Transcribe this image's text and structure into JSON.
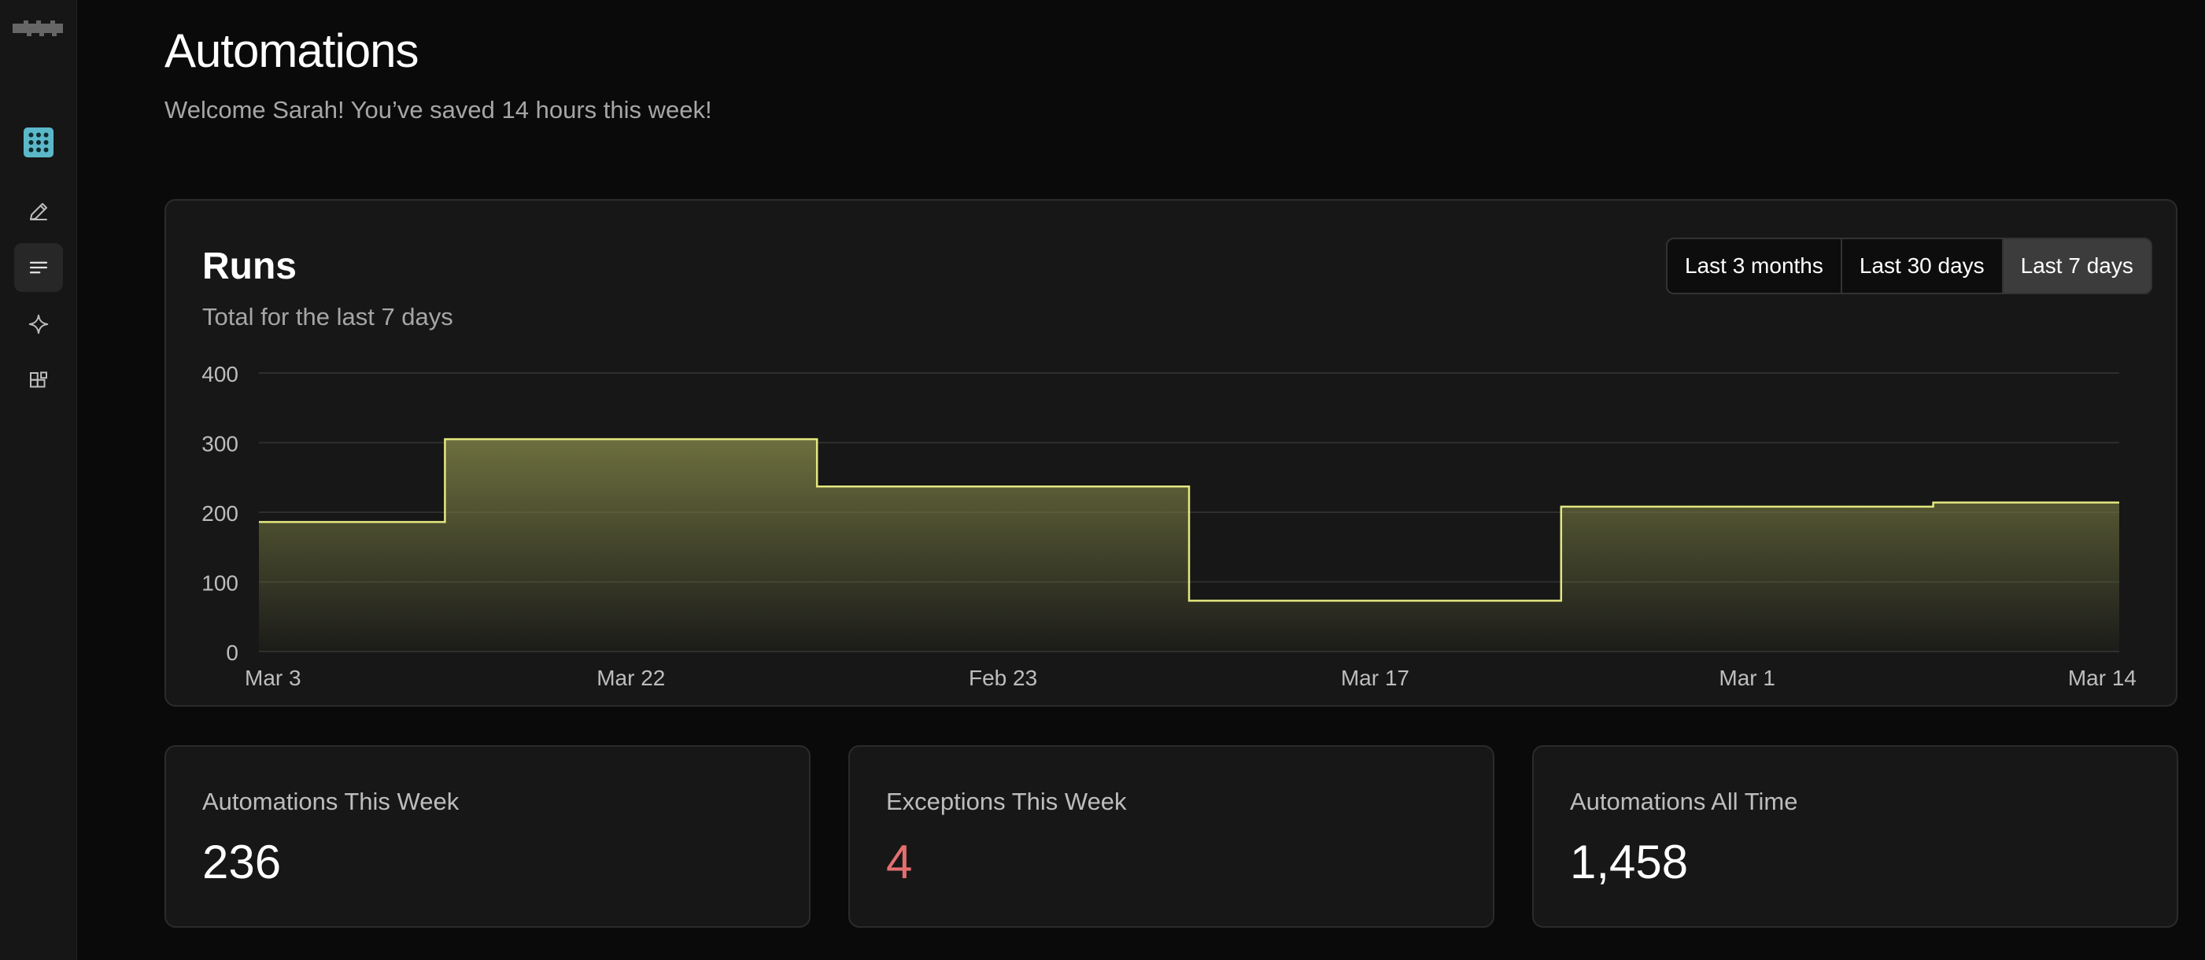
{
  "header": {
    "title": "Automations",
    "subtitle": "Welcome Sarah! You’ve saved 14 hours this week!"
  },
  "sidebar": {
    "items": [
      {
        "icon": "apps-grid-icon",
        "active": false,
        "highlighted": true
      },
      {
        "icon": "pencil-icon",
        "active": false
      },
      {
        "icon": "list-lines-icon",
        "active": true
      },
      {
        "icon": "sparkle-icon",
        "active": false
      },
      {
        "icon": "widgets-icon",
        "active": false
      }
    ]
  },
  "runs_card": {
    "title": "Runs",
    "subtitle": "Total for the last 7 days",
    "ranges": [
      "Last 3 months",
      "Last 30 days",
      "Last 7 days"
    ],
    "selected_range": "Last 7 days"
  },
  "chart_data": {
    "type": "area",
    "step": true,
    "categories": [
      "Mar 3",
      "Mar 22",
      "Feb 23",
      "Mar 17",
      "Mar 1",
      "Mar 14"
    ],
    "steps": [
      {
        "x": 0.0,
        "y": 186
      },
      {
        "x": 0.5,
        "y": 305
      },
      {
        "x": 1.5,
        "y": 237
      },
      {
        "x": 2.5,
        "y": 73
      },
      {
        "x": 3.5,
        "y": 208
      },
      {
        "x": 4.5,
        "y": 214
      }
    ],
    "x_tick_labels": [
      "Mar 3",
      "Mar 22",
      "Feb 23",
      "Mar 17",
      "Mar 1",
      "Mar 14"
    ],
    "y_ticks": [
      0,
      100,
      200,
      300,
      400
    ],
    "ylim": [
      0,
      400
    ],
    "grid": true,
    "colors": {
      "line": "#e4e87f",
      "fill": "#6c6f3e"
    }
  },
  "stats": [
    {
      "label": "Automations This Week",
      "value": "236",
      "alert": false
    },
    {
      "label": "Exceptions This Week",
      "value": "4",
      "alert": true
    },
    {
      "label": "Automations All Time",
      "value": "1,458",
      "alert": false
    }
  ],
  "colors": {
    "background": "#0a0a0a",
    "card": "#171717",
    "accent_tile": "#5bb8c9",
    "exception": "#e46f6f"
  }
}
